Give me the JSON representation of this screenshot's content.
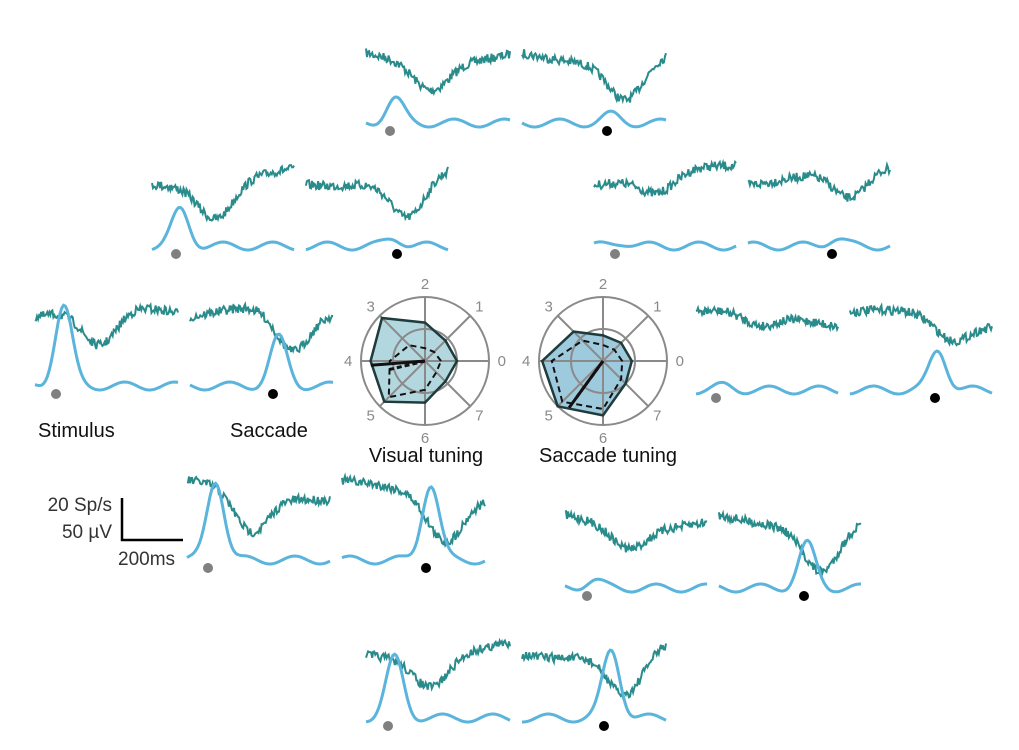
{
  "colors": {
    "lfp": "#2a8b8b",
    "spike": "#5ab4dc",
    "stimulus_marker": "#808080",
    "saccade_marker": "#000000",
    "polar_grid": "#8a8a8a",
    "visual_fill": "#9ac9d3",
    "saccade_fill": "#7db8d2"
  },
  "labels": {
    "stimulus": "Stimulus",
    "saccade": "Saccade",
    "visual_tuning": "Visual tuning",
    "saccade_tuning": "Saccade tuning",
    "scale_rate": "20 Sp/s",
    "scale_voltage": "50 µV",
    "scale_time": "200ms"
  },
  "chart_data": [
    {
      "type": "line",
      "description_key": "response_traces",
      "series_kinds": [
        "LFP",
        "spike rate"
      ],
      "panels": [
        {
          "direction": 2,
          "stimulus_aligned": {
            "lfp_dip": 0.5,
            "spike_peak": 0.3
          },
          "saccade_aligned": {
            "lfp_dip": 0.7,
            "spike_peak": 0.1
          }
        },
        {
          "direction": 3,
          "stimulus_aligned": {
            "lfp_dip": 0.65,
            "spike_peak": 0.45
          },
          "saccade_aligned": {
            "lfp_dip": 0.75,
            "spike_peak": 0.1
          }
        },
        {
          "direction": 1,
          "stimulus_aligned": {
            "lfp_dip": 0.35,
            "spike_peak": 0.05
          },
          "saccade_aligned": {
            "lfp_dip": 0.55,
            "spike_peak": 0.1
          }
        },
        {
          "direction": 4,
          "stimulus_aligned": {
            "lfp_dip": 0.7,
            "spike_peak": 1.0
          },
          "saccade_aligned": {
            "lfp_dip": 0.8,
            "spike_peak": 0.6
          }
        },
        {
          "direction": 0,
          "stimulus_aligned": {
            "lfp_dip": 0.25,
            "spike_peak": 0.05
          },
          "saccade_aligned": {
            "lfp_dip": 0.4,
            "spike_peak": 0.5
          }
        },
        {
          "direction": 5,
          "stimulus_aligned": {
            "lfp_dip": 0.75,
            "spike_peak": 1.0
          },
          "saccade_aligned": {
            "lfp_dip": 0.8,
            "spike_peak": 0.95
          }
        },
        {
          "direction": 7,
          "stimulus_aligned": {
            "lfp_dip": 0.4,
            "spike_peak": 0.1
          },
          "saccade_aligned": {
            "lfp_dip": 0.8,
            "spike_peak": 0.55
          }
        },
        {
          "direction": 6,
          "stimulus_aligned": {
            "lfp_dip": 0.55,
            "spike_peak": 0.75
          },
          "saccade_aligned": {
            "lfp_dip": 0.8,
            "spike_peak": 0.85
          }
        }
      ]
    },
    {
      "type": "radar",
      "title": "Visual tuning",
      "directions": [
        "0",
        "1",
        "2",
        "3",
        "4",
        "5",
        "6",
        "7"
      ],
      "rmax": 1,
      "series": [
        {
          "style": "solid-filled",
          "values": [
            0.5,
            0.45,
            0.6,
            0.95,
            0.85,
            0.9,
            0.65,
            0.45
          ]
        },
        {
          "style": "dashed",
          "values": [
            0.25,
            0.2,
            0.2,
            0.35,
            0.55,
            0.8,
            0.45,
            0.25
          ]
        }
      ],
      "vectors": [
        {
          "style": "solid",
          "angle_index": 4.1,
          "length": 0.85
        },
        {
          "style": "dashed",
          "angle_index": 4.3,
          "length": 0.6
        }
      ]
    },
    {
      "type": "radar",
      "title": "Saccade tuning",
      "directions": [
        "0",
        "1",
        "2",
        "3",
        "4",
        "5",
        "6",
        "7"
      ],
      "rmax": 1,
      "series": [
        {
          "style": "solid-filled",
          "values": [
            0.45,
            0.4,
            0.4,
            0.65,
            0.95,
            1.0,
            0.85,
            0.5
          ]
        },
        {
          "style": "dashed",
          "values": [
            0.3,
            0.25,
            0.25,
            0.45,
            0.8,
            0.9,
            0.75,
            0.4
          ]
        }
      ],
      "vectors": [
        {
          "style": "solid",
          "angle_index": 5.2,
          "length": 0.9
        },
        {
          "style": "dashed",
          "angle_index": 5.2,
          "length": 0.7
        }
      ]
    }
  ]
}
